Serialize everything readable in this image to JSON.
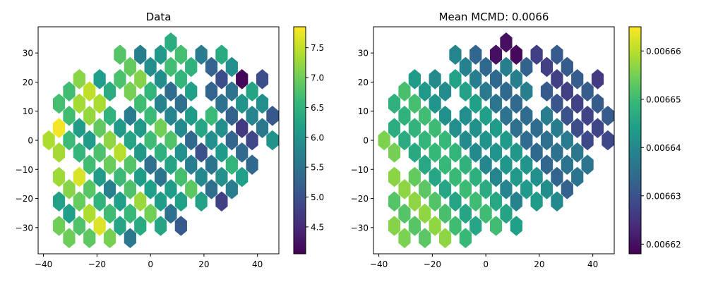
{
  "chart_data": [
    {
      "type": "hexbin",
      "title": "Data",
      "xlim": [
        -42,
        48
      ],
      "ylim": [
        -39,
        39
      ],
      "xticks": [
        -40,
        -20,
        0,
        20,
        40
      ],
      "yticks": [
        -30,
        -20,
        -10,
        0,
        10,
        20,
        30
      ],
      "colormap": "viridis",
      "grid": false,
      "colorbar": {
        "range": [
          4.05,
          7.85
        ],
        "ticks": [
          "4.5",
          "5.0",
          "5.5",
          "6.0",
          "6.5",
          "7.0",
          "7.5"
        ],
        "tick_values": [
          4.5,
          5.0,
          5.5,
          6.0,
          6.5,
          7.0,
          7.5
        ]
      }
    },
    {
      "type": "hexbin",
      "title": "Mean MCMD: 0.0066",
      "xlim": [
        -42,
        48
      ],
      "ylim": [
        -39,
        39
      ],
      "xticks": [
        -40,
        -20,
        0,
        20,
        40
      ],
      "yticks": [
        -30,
        -20,
        -10,
        0,
        10,
        20,
        30
      ],
      "colormap": "viridis",
      "grid": false,
      "colorbar": {
        "range": [
          0.006618,
          0.006665
        ],
        "ticks": [
          "0.00662",
          "0.00663",
          "0.00664",
          "0.00665",
          "0.00666"
        ],
        "tick_values": [
          0.00662,
          0.00663,
          0.00664,
          0.00665,
          0.00666
        ]
      }
    }
  ],
  "colors": {
    "viridis": [
      "#440154",
      "#482878",
      "#3e4989",
      "#31688e",
      "#26828e",
      "#1f9e89",
      "#35b779",
      "#6ece58",
      "#b5de2b",
      "#fde725"
    ]
  }
}
